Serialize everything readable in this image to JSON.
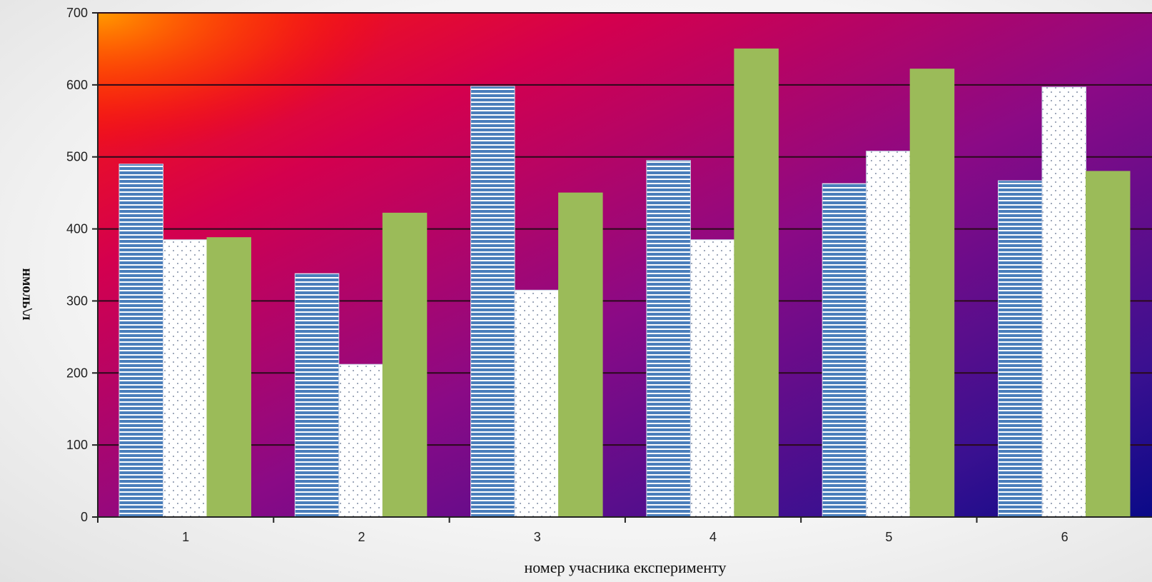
{
  "chart_data": {
    "type": "bar",
    "title": "",
    "xlabel": "номер учасника експерименту",
    "ylabel": "нмоль\\л",
    "categories": [
      "1",
      "2",
      "3",
      "4",
      "5",
      "6"
    ],
    "ylim": [
      0,
      700
    ],
    "yticks": [
      0,
      100,
      200,
      300,
      400,
      500,
      600,
      700
    ],
    "grid": true,
    "legend": "none",
    "series": [
      {
        "values": [
          490,
          338,
          598,
          495,
          463,
          467
        ],
        "color": "#4a7ebb",
        "pattern": "horizontal-stripes"
      },
      {
        "values": [
          385,
          212,
          315,
          385,
          508,
          597
        ],
        "color": "#ffffff",
        "pattern": "dots"
      },
      {
        "values": [
          388,
          422,
          450,
          650,
          622,
          480
        ],
        "color": "#9bbb59",
        "pattern": "solid"
      }
    ]
  }
}
